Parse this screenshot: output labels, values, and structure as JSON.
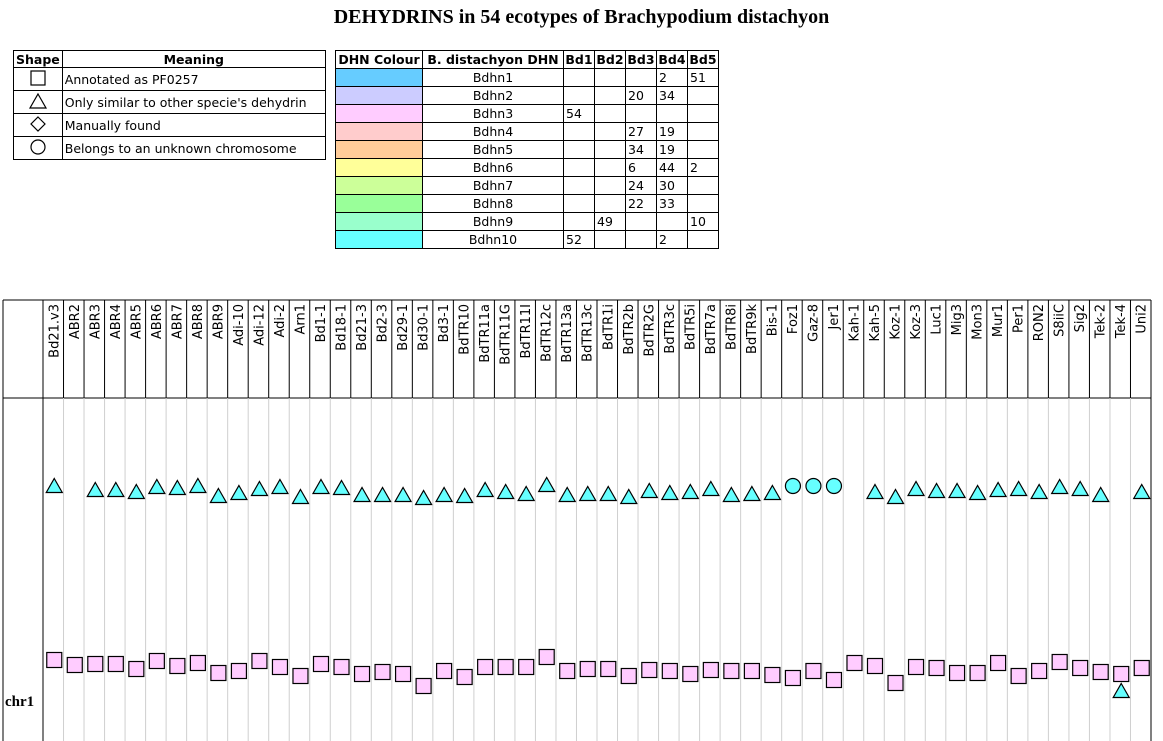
{
  "title": "DEHYDRINS in 54 ecotypes of Brachypodium distachyon",
  "legend": {
    "headers": [
      "Shape",
      "Meaning"
    ],
    "rows": [
      {
        "shape": "square-icon",
        "meaning": "Annotated as PF0257"
      },
      {
        "shape": "triangle-icon",
        "meaning": "Only similar to other specie's dehydrin"
      },
      {
        "shape": "diamond-icon",
        "meaning": "Manually found"
      },
      {
        "shape": "circle-icon",
        "meaning": "Belongs to an unknown chromosome"
      }
    ]
  },
  "colour_table": {
    "headers": [
      "DHN Colour",
      "B. distachyon DHN",
      "Bd1",
      "Bd2",
      "Bd3",
      "Bd4",
      "Bd5"
    ],
    "rows": [
      {
        "color": "#66ccff",
        "name": "Bdhn1",
        "bd1": "",
        "bd2": "",
        "bd3": "",
        "bd4": "2",
        "bd5": "51"
      },
      {
        "color": "#ccccff",
        "name": "Bdhn2",
        "bd1": "",
        "bd2": "",
        "bd3": "20",
        "bd4": "34",
        "bd5": ""
      },
      {
        "color": "#ffccff",
        "name": "Bdhn3",
        "bd1": "54",
        "bd2": "",
        "bd3": "",
        "bd4": "",
        "bd5": ""
      },
      {
        "color": "#ffcccc",
        "name": "Bdhn4",
        "bd1": "",
        "bd2": "",
        "bd3": "27",
        "bd4": "19",
        "bd5": ""
      },
      {
        "color": "#ffcc99",
        "name": "Bdhn5",
        "bd1": "",
        "bd2": "",
        "bd3": "34",
        "bd4": "19",
        "bd5": ""
      },
      {
        "color": "#ffff99",
        "name": "Bdhn6",
        "bd1": "",
        "bd2": "",
        "bd3": "6",
        "bd4": "44",
        "bd5": "2"
      },
      {
        "color": "#ccff99",
        "name": "Bdhn7",
        "bd1": "",
        "bd2": "",
        "bd3": "24",
        "bd4": "30",
        "bd5": ""
      },
      {
        "color": "#99ff99",
        "name": "Bdhn8",
        "bd1": "",
        "bd2": "",
        "bd3": "22",
        "bd4": "33",
        "bd5": ""
      },
      {
        "color": "#99ffcc",
        "name": "Bdhn9",
        "bd1": "",
        "bd2": "49",
        "bd3": "",
        "bd4": "",
        "bd5": "10"
      },
      {
        "color": "#66ffff",
        "name": "Bdhn10",
        "bd1": "52",
        "bd2": "",
        "bd3": "",
        "bd4": "2",
        "bd5": ""
      }
    ]
  },
  "chart_data": {
    "type": "scatter",
    "row_label": "chr1",
    "ecotypes": [
      "Bd21.v3",
      "ABR2",
      "ABR3",
      "ABR4",
      "ABR5",
      "ABR6",
      "ABR7",
      "ABR8",
      "ABR9",
      "Adi-10",
      "Adi-12",
      "Adi-2",
      "Arn1",
      "Bd1-1",
      "Bd18-1",
      "Bd21-3",
      "Bd2-3",
      "Bd29-1",
      "Bd30-1",
      "Bd3-1",
      "BdTR10",
      "BdTR11a",
      "BdTR11G",
      "BdTR11I",
      "BdTR12c",
      "BdTR13a",
      "BdTR13c",
      "BdTR1i",
      "BdTR2b",
      "BdTR2G",
      "BdTR3c",
      "BdTR5i",
      "BdTR7a",
      "BdTR8i",
      "BdTR9k",
      "Bis-1",
      "Foz1",
      "Gaz-8",
      "Jer1",
      "Kah-1",
      "Kah-5",
      "Koz-1",
      "Koz-3",
      "Luc1",
      "Mig3",
      "Mon3",
      "Mur1",
      "Per1",
      "RON2",
      "S8iiC",
      "Sig2",
      "Tek-2",
      "Tek-4",
      "Uni2"
    ],
    "series": [
      {
        "name": "Bdhn10",
        "color": "#66ffff",
        "shapes": [
          "triangle",
          "none",
          "triangle",
          "triangle",
          "triangle",
          "triangle",
          "triangle",
          "triangle",
          "triangle",
          "triangle",
          "triangle",
          "triangle",
          "triangle",
          "triangle",
          "triangle",
          "triangle",
          "triangle",
          "triangle",
          "triangle",
          "triangle",
          "triangle",
          "triangle",
          "triangle",
          "triangle",
          "triangle",
          "triangle",
          "triangle",
          "triangle",
          "triangle",
          "triangle",
          "triangle",
          "triangle",
          "triangle",
          "triangle",
          "triangle",
          "triangle",
          "circle",
          "circle",
          "circle",
          "none",
          "triangle",
          "triangle",
          "triangle",
          "triangle",
          "triangle",
          "triangle",
          "triangle",
          "triangle",
          "triangle",
          "triangle",
          "triangle",
          "triangle",
          "none",
          "triangle"
        ],
        "offsets": [
          2,
          0,
          6,
          6,
          8,
          3,
          4,
          2,
          12,
          9,
          5,
          3,
          13,
          3,
          4,
          11,
          11,
          11,
          14,
          11,
          12,
          6,
          8,
          10,
          1,
          11,
          10,
          10,
          13,
          7,
          9,
          8,
          5,
          11,
          10,
          9,
          2,
          2,
          2,
          0,
          8,
          13,
          5,
          7,
          7,
          9,
          6,
          5,
          8,
          3,
          5,
          11,
          0,
          8
        ]
      },
      {
        "name": "Bdhn3",
        "color": "#ffccff",
        "shapes": [
          "square",
          "square",
          "square",
          "square",
          "square",
          "square",
          "square",
          "square",
          "square",
          "square",
          "square",
          "square",
          "square",
          "square",
          "square",
          "square",
          "square",
          "square",
          "square",
          "square",
          "square",
          "square",
          "square",
          "square",
          "square",
          "square",
          "square",
          "square",
          "square",
          "square",
          "square",
          "square",
          "square",
          "square",
          "square",
          "square",
          "square",
          "square",
          "square",
          "square",
          "square",
          "square",
          "square",
          "square",
          "square",
          "square",
          "square",
          "square",
          "square",
          "square",
          "square",
          "square",
          "square",
          "square"
        ],
        "offsets": [
          0,
          5,
          4,
          4,
          9,
          1,
          6,
          3,
          13,
          11,
          1,
          7,
          16,
          4,
          7,
          14,
          12,
          14,
          26,
          11,
          17,
          7,
          7,
          7,
          -3,
          11,
          9,
          9,
          16,
          10,
          11,
          14,
          10,
          11,
          11,
          15,
          18,
          11,
          20,
          3,
          6,
          23,
          7,
          8,
          13,
          13,
          3,
          16,
          11,
          2,
          8,
          12,
          14,
          8
        ]
      },
      {
        "name": "Bdhn10 (chr1)",
        "color": "#66ffff",
        "shapes": [
          "none",
          "none",
          "none",
          "none",
          "none",
          "none",
          "none",
          "none",
          "none",
          "none",
          "none",
          "none",
          "none",
          "none",
          "none",
          "none",
          "none",
          "none",
          "none",
          "none",
          "none",
          "none",
          "none",
          "none",
          "none",
          "none",
          "none",
          "none",
          "none",
          "none",
          "none",
          "none",
          "none",
          "none",
          "none",
          "none",
          "none",
          "none",
          "none",
          "none",
          "none",
          "none",
          "none",
          "none",
          "none",
          "none",
          "none",
          "none",
          "none",
          "none",
          "none",
          "none",
          "triangle",
          "none"
        ],
        "offsets": [
          0,
          0,
          0,
          0,
          0,
          0,
          0,
          0,
          0,
          0,
          0,
          0,
          0,
          0,
          0,
          0,
          0,
          0,
          0,
          0,
          0,
          0,
          0,
          0,
          0,
          0,
          0,
          0,
          0,
          0,
          0,
          0,
          0,
          0,
          0,
          0,
          0,
          0,
          0,
          0,
          0,
          0,
          0,
          0,
          0,
          0,
          0,
          0,
          0,
          0,
          0,
          0,
          0,
          0
        ]
      }
    ]
  }
}
